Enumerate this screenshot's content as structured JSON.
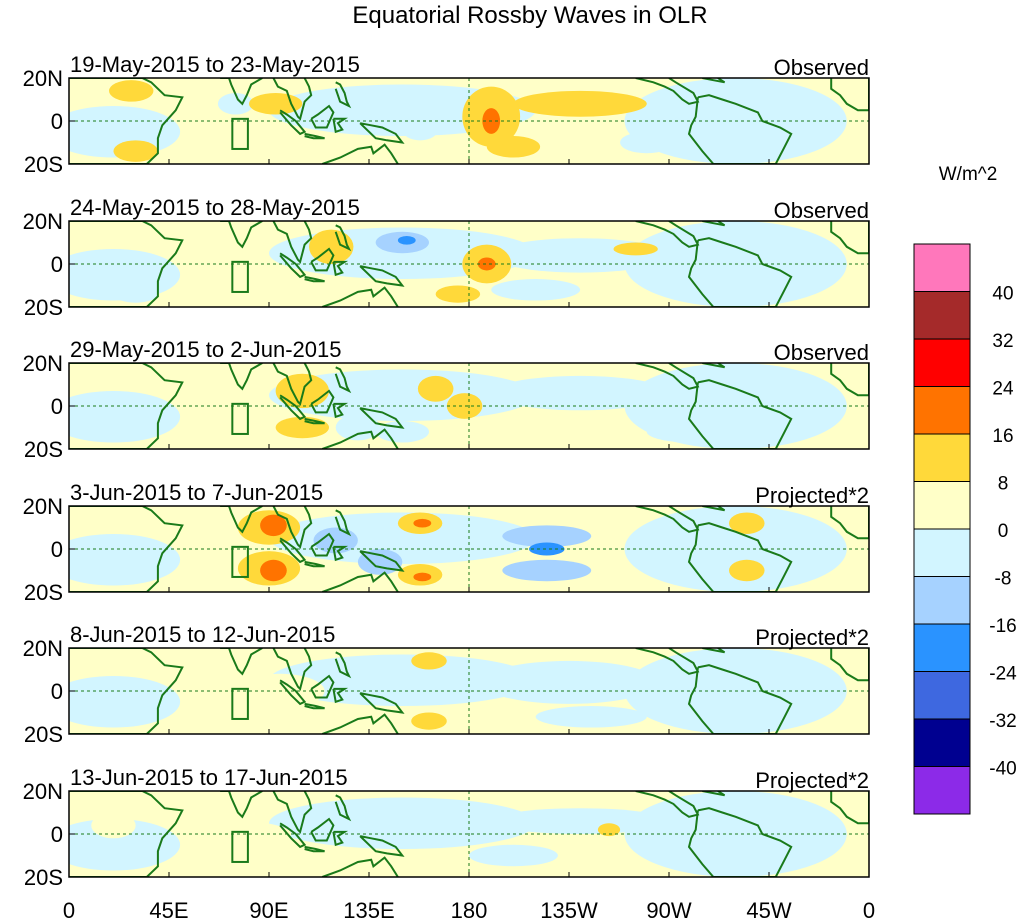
{
  "chart_data": {
    "type": "heatmap",
    "title": "Equatorial Rossby Waves in OLR",
    "units_label": "W/m^2",
    "x_ticks": [
      "0",
      "45E",
      "90E",
      "135E",
      "180",
      "135W",
      "90W",
      "45W",
      "0"
    ],
    "y_ticks": [
      "20N",
      "0",
      "20S"
    ],
    "y_range": [
      -20,
      20
    ],
    "x_range_lon": [
      0,
      360
    ],
    "colorbar": {
      "levels": [
        "40",
        "32",
        "24",
        "16",
        "8",
        "0",
        "-8",
        "-16",
        "-24",
        "-32",
        "-40"
      ],
      "colors": [
        "#ff77bb",
        "#a52a2a",
        "#ff0000",
        "#ff7300",
        "#ffd93a",
        "#ffffc8",
        "#d2f5ff",
        "#a6d2ff",
        "#2a93ff",
        "#3e68e0",
        "#000090",
        "#8c2ae8"
      ]
    },
    "panels": [
      {
        "date": "19-May-2015 to 23-May-2015",
        "kind": "Observed",
        "anomalies": [
          {
            "lon": 28,
            "lat": 14,
            "rx": 10,
            "ry": 5,
            "value": 10
          },
          {
            "lon": 30,
            "lat": -14,
            "rx": 10,
            "ry": 5,
            "value": 9
          },
          {
            "lon": 75,
            "lat": 8,
            "rx": 8,
            "ry": 5,
            "value": -6
          },
          {
            "lon": 93,
            "lat": 8,
            "rx": 12,
            "ry": 5,
            "value": 10
          },
          {
            "lon": 140,
            "lat": 9,
            "rx": 10,
            "ry": 5,
            "value": -7
          },
          {
            "lon": 158,
            "lat": -4,
            "rx": 8,
            "ry": 5,
            "value": -7
          },
          {
            "lon": 190,
            "lat": 2,
            "rx": 13,
            "ry": 14,
            "value": 10
          },
          {
            "lon": 190,
            "lat": 0,
            "rx": 4,
            "ry": 6,
            "value": 20
          },
          {
            "lon": 230,
            "lat": 8,
            "rx": 30,
            "ry": 6,
            "value": 9
          },
          {
            "lon": 200,
            "lat": -12,
            "rx": 12,
            "ry": 5,
            "value": 9
          },
          {
            "lon": 260,
            "lat": -10,
            "rx": 12,
            "ry": 5,
            "value": -5
          },
          {
            "lon": 320,
            "lat": 5,
            "rx": 20,
            "ry": 10,
            "value": -5
          }
        ]
      },
      {
        "date": "24-May-2015 to 28-May-2015",
        "kind": "Observed",
        "anomalies": [
          {
            "lon": 82,
            "lat": 8,
            "rx": 8,
            "ry": 6,
            "value": 8
          },
          {
            "lon": 118,
            "lat": 8,
            "rx": 10,
            "ry": 8,
            "value": 10
          },
          {
            "lon": 150,
            "lat": 10,
            "rx": 12,
            "ry": 5,
            "value": -9
          },
          {
            "lon": 152,
            "lat": 11,
            "rx": 4,
            "ry": 2,
            "value": -20
          },
          {
            "lon": 188,
            "lat": 0,
            "rx": 11,
            "ry": 9,
            "value": 12
          },
          {
            "lon": 188,
            "lat": 0,
            "rx": 4,
            "ry": 3,
            "value": 20
          },
          {
            "lon": 230,
            "lat": 4,
            "rx": 40,
            "ry": 8,
            "value": -6
          },
          {
            "lon": 255,
            "lat": 7,
            "rx": 10,
            "ry": 3,
            "value": 9
          },
          {
            "lon": 210,
            "lat": -12,
            "rx": 20,
            "ry": 5,
            "value": -7
          },
          {
            "lon": 175,
            "lat": -14,
            "rx": 10,
            "ry": 4,
            "value": 9
          },
          {
            "lon": 30,
            "lat": -14,
            "rx": 10,
            "ry": 4,
            "value": -6
          }
        ]
      },
      {
        "date": "29-May-2015 to 2-Jun-2015",
        "kind": "Observed",
        "anomalies": [
          {
            "lon": 105,
            "lat": 7,
            "rx": 12,
            "ry": 8,
            "value": 10
          },
          {
            "lon": 135,
            "lat": 8,
            "rx": 12,
            "ry": 7,
            "value": -7
          },
          {
            "lon": 165,
            "lat": 8,
            "rx": 8,
            "ry": 6,
            "value": 9
          },
          {
            "lon": 178,
            "lat": 0,
            "rx": 8,
            "ry": 6,
            "value": 9
          },
          {
            "lon": 130,
            "lat": -10,
            "rx": 10,
            "ry": 6,
            "value": -7
          },
          {
            "lon": 150,
            "lat": -12,
            "rx": 12,
            "ry": 5,
            "value": -7
          },
          {
            "lon": 105,
            "lat": -10,
            "rx": 12,
            "ry": 5,
            "value": 9
          },
          {
            "lon": 230,
            "lat": 6,
            "rx": 40,
            "ry": 8,
            "value": -5
          },
          {
            "lon": 280,
            "lat": -12,
            "rx": 20,
            "ry": 5,
            "value": -4
          }
        ]
      },
      {
        "date": "3-Jun-2015 to 7-Jun-2015",
        "kind": "Projected*2",
        "anomalies": [
          {
            "lon": 90,
            "lat": 10,
            "rx": 14,
            "ry": 8,
            "value": 10
          },
          {
            "lon": 92,
            "lat": 11,
            "rx": 6,
            "ry": 5,
            "value": 20
          },
          {
            "lon": 90,
            "lat": -9,
            "rx": 14,
            "ry": 8,
            "value": 10
          },
          {
            "lon": 92,
            "lat": -10,
            "rx": 6,
            "ry": 5,
            "value": 20
          },
          {
            "lon": 120,
            "lat": 4,
            "rx": 10,
            "ry": 6,
            "value": -8
          },
          {
            "lon": 158,
            "lat": 12,
            "rx": 10,
            "ry": 5,
            "value": 10
          },
          {
            "lon": 159,
            "lat": 12,
            "rx": 4,
            "ry": 2,
            "value": 20
          },
          {
            "lon": 158,
            "lat": -12,
            "rx": 10,
            "ry": 5,
            "value": 10
          },
          {
            "lon": 159,
            "lat": -13,
            "rx": 4,
            "ry": 2,
            "value": 20
          },
          {
            "lon": 140,
            "lat": -6,
            "rx": 10,
            "ry": 6,
            "value": -8
          },
          {
            "lon": 215,
            "lat": 6,
            "rx": 20,
            "ry": 5,
            "value": -10
          },
          {
            "lon": 215,
            "lat": -10,
            "rx": 20,
            "ry": 5,
            "value": -10
          },
          {
            "lon": 215,
            "lat": 0,
            "rx": 8,
            "ry": 3,
            "value": -20
          },
          {
            "lon": 305,
            "lat": 12,
            "rx": 8,
            "ry": 5,
            "value": 9
          },
          {
            "lon": 305,
            "lat": -10,
            "rx": 8,
            "ry": 5,
            "value": 9
          }
        ]
      },
      {
        "date": "8-Jun-2015 to 12-Jun-2015",
        "kind": "Projected*2",
        "anomalies": [
          {
            "lon": 162,
            "lat": 14,
            "rx": 8,
            "ry": 4,
            "value": 9
          },
          {
            "lon": 162,
            "lat": -14,
            "rx": 8,
            "ry": 4,
            "value": 9
          },
          {
            "lon": 140,
            "lat": 6,
            "rx": 12,
            "ry": 6,
            "value": -6
          },
          {
            "lon": 225,
            "lat": 4,
            "rx": 40,
            "ry": 10,
            "value": -6
          },
          {
            "lon": 235,
            "lat": -12,
            "rx": 25,
            "ry": 5,
            "value": -5
          },
          {
            "lon": 95,
            "lat": 0,
            "rx": 20,
            "ry": 8,
            "value": 6
          }
        ]
      },
      {
        "date": "13-Jun-2015 to 17-Jun-2015",
        "kind": "Projected*2",
        "anomalies": [
          {
            "lon": 243,
            "lat": 2,
            "rx": 5,
            "ry": 3,
            "value": 9
          },
          {
            "lon": 140,
            "lat": 6,
            "rx": 12,
            "ry": 5,
            "value": -5
          },
          {
            "lon": 230,
            "lat": 6,
            "rx": 40,
            "ry": 6,
            "value": -5
          },
          {
            "lon": 200,
            "lat": -10,
            "rx": 20,
            "ry": 5,
            "value": -5
          },
          {
            "lon": 20,
            "lat": 4,
            "rx": 10,
            "ry": 6,
            "value": 8
          },
          {
            "lon": 75,
            "lat": 0,
            "rx": 25,
            "ry": 6,
            "value": 5
          }
        ]
      }
    ]
  }
}
